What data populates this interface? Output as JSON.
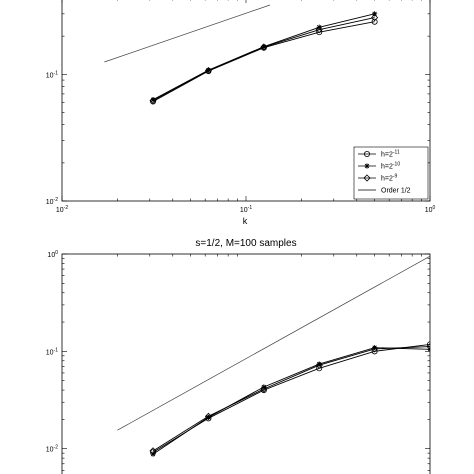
{
  "chart_data": [
    {
      "type": "line",
      "title": "",
      "xlabel": "k",
      "ylabel": "",
      "xscale": "log",
      "yscale": "log",
      "xlim": [
        0.01,
        1
      ],
      "ylim": [
        0.01,
        0.4
      ],
      "xticks": [
        0.01,
        0.1,
        1
      ],
      "xticklabels": [
        [
          "10",
          "-2"
        ],
        [
          "10",
          "-1"
        ],
        [
          "10",
          "0"
        ]
      ],
      "yticks": [
        0.01,
        0.1
      ],
      "yticklabels": [
        [
          "10",
          "-2"
        ],
        [
          "10",
          "-1"
        ]
      ],
      "grid": false,
      "legend_position": "bottom-right",
      "series": [
        {
          "name": "h=2",
          "name_sup": "-11",
          "marker": "circle",
          "x": [
            0.03125,
            0.0625,
            0.125,
            0.25,
            0.5
          ],
          "y": [
            0.061,
            0.106,
            0.162,
            0.215,
            0.26
          ]
        },
        {
          "name": "h=2",
          "name_sup": "-10",
          "marker": "star",
          "x": [
            0.03125,
            0.0625,
            0.125,
            0.25,
            0.5
          ],
          "y": [
            0.063,
            0.108,
            0.165,
            0.235,
            0.3
          ]
        },
        {
          "name": "h=2",
          "name_sup": "-9",
          "marker": "diamond",
          "x": [
            0.03125,
            0.0625,
            0.125,
            0.25,
            0.5
          ],
          "y": [
            0.062,
            0.107,
            0.164,
            0.225,
            0.28
          ]
        },
        {
          "name": "Order 1/2",
          "marker": "none",
          "x": [
            0.017,
            0.135
          ],
          "y": [
            0.125,
            0.352
          ]
        }
      ]
    },
    {
      "type": "line",
      "title": "s=1/2, M=100 samples",
      "xlabel": "",
      "ylabel": "",
      "xscale": "log",
      "yscale": "log",
      "xlim": [
        0.01,
        1
      ],
      "ylim": [
        0.005,
        1
      ],
      "xticks": [],
      "xticklabels": [],
      "yticks": [
        0.01,
        0.1,
        1
      ],
      "yticklabels": [
        [
          "10",
          "-2"
        ],
        [
          "10",
          "-1"
        ],
        [
          "10",
          "0"
        ]
      ],
      "grid": false,
      "series": [
        {
          "name": "h=2^-11",
          "marker": "circle",
          "x": [
            0.03125,
            0.0625,
            0.125,
            0.25,
            0.5,
            1
          ],
          "y": [
            0.0092,
            0.0205,
            0.04,
            0.067,
            0.1,
            0.118
          ]
        },
        {
          "name": "h=2^-10",
          "marker": "star",
          "x": [
            0.03125,
            0.0625,
            0.125,
            0.25,
            0.5,
            1
          ],
          "y": [
            0.0088,
            0.021,
            0.043,
            0.074,
            0.109,
            0.105
          ]
        },
        {
          "name": "h=2^-9",
          "marker": "diamond",
          "x": [
            0.03125,
            0.0625,
            0.125,
            0.25,
            0.5,
            1
          ],
          "y": [
            0.0095,
            0.0215,
            0.041,
            0.072,
            0.106,
            0.112
          ]
        },
        {
          "name": "Order 1/2",
          "marker": "none",
          "x": [
            0.02,
            1
          ],
          "y": [
            0.0155,
            0.95
          ]
        }
      ]
    }
  ]
}
